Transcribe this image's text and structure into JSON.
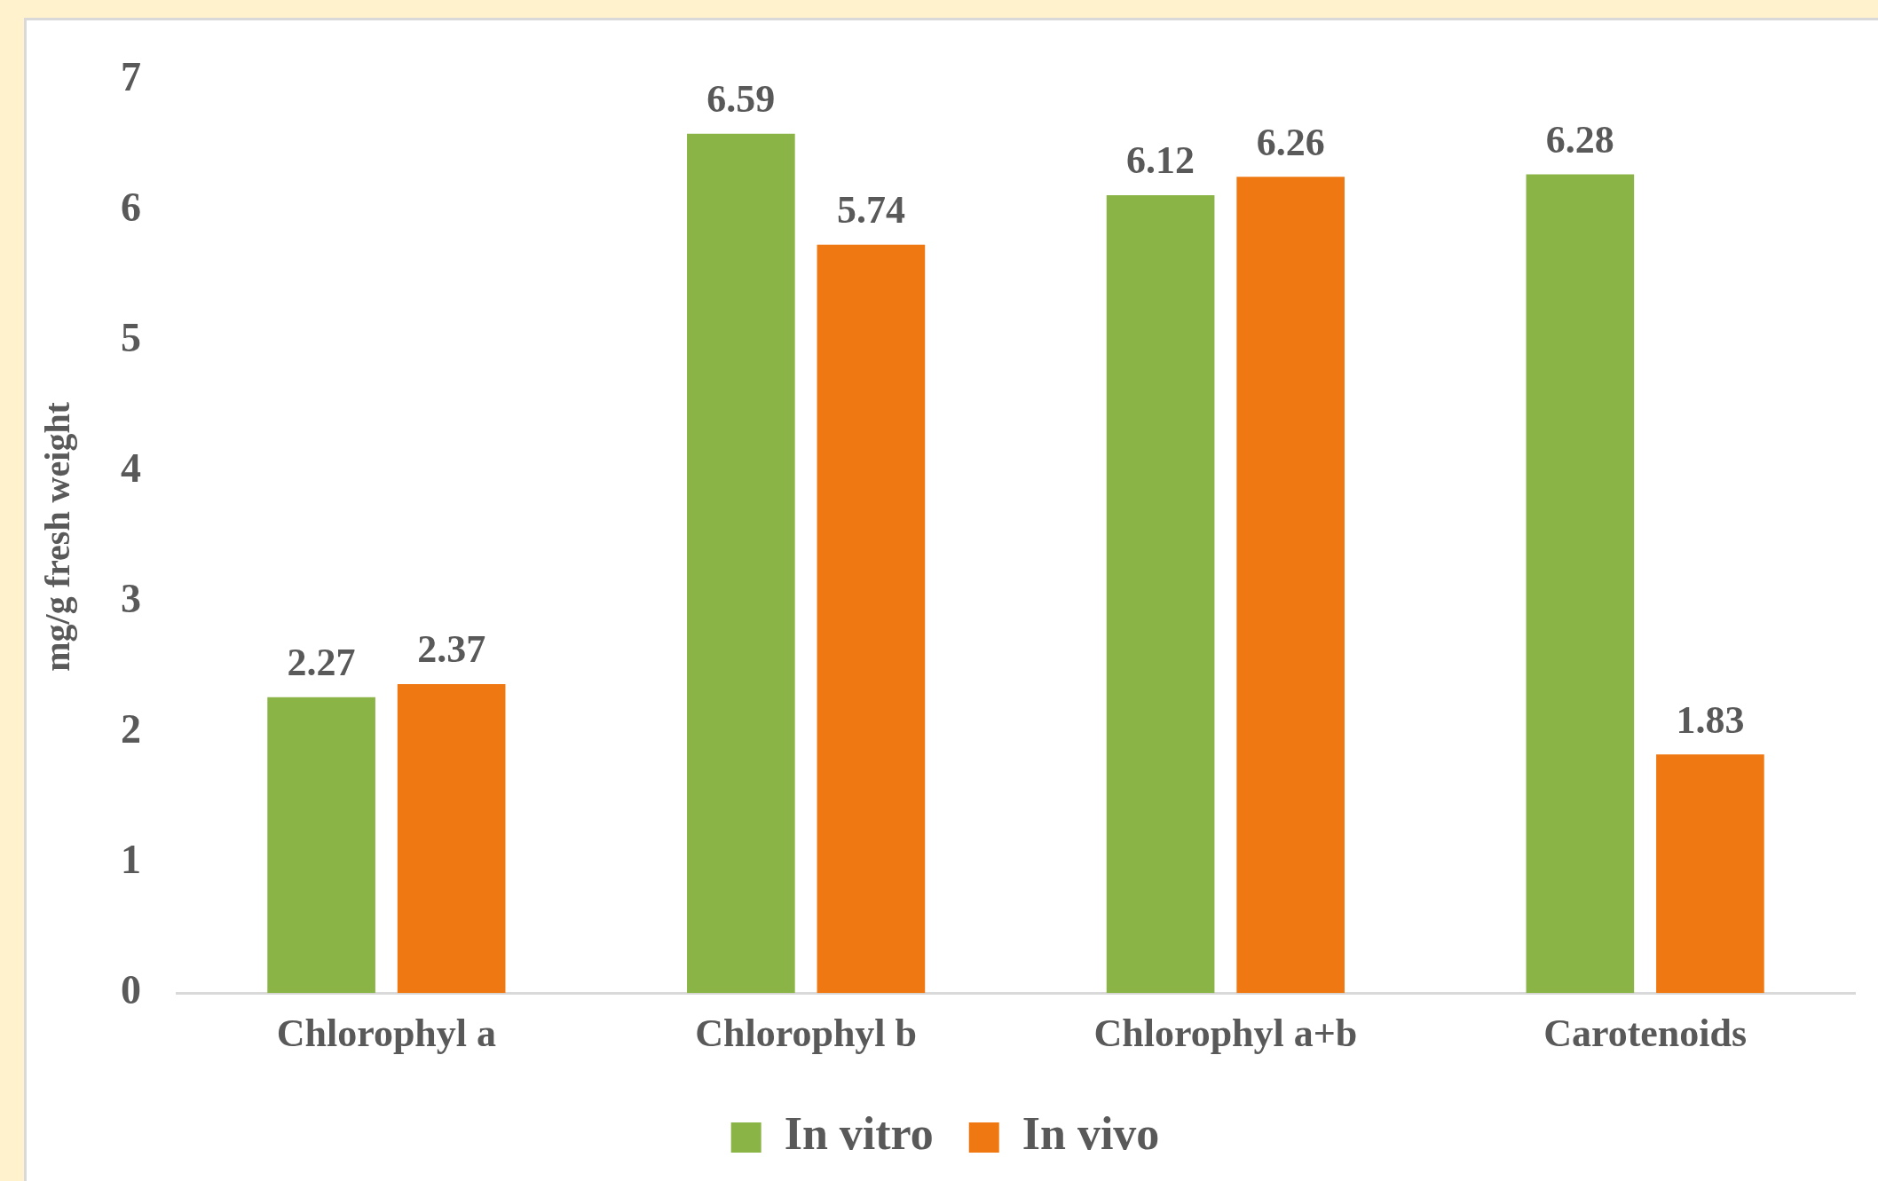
{
  "chart_data": {
    "type": "bar",
    "ylabel": "mg/g fresh weight",
    "categories": [
      "Chlorophyl a",
      "Chlorophyl b",
      "Chlorophyl a+b",
      "Carotenoids"
    ],
    "series": [
      {
        "name": "In vitro",
        "color": "#8ab446",
        "values": [
          2.27,
          6.59,
          6.12,
          6.28
        ]
      },
      {
        "name": "In vivo",
        "color": "#f07813",
        "values": [
          2.37,
          5.74,
          6.26,
          1.83
        ]
      }
    ],
    "ylim": [
      0,
      7
    ],
    "yticks": [
      0,
      1,
      2,
      3,
      4,
      5,
      6,
      7
    ],
    "grid": false,
    "legend": "bottom",
    "data_labels": true
  }
}
